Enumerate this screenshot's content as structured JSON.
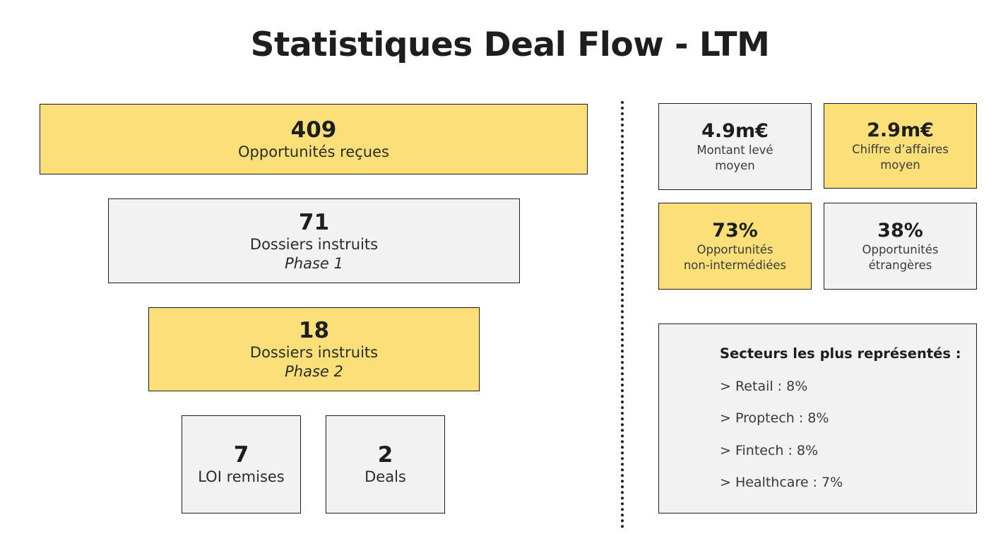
{
  "title": "Statistiques Deal Flow - LTM",
  "funnel": {
    "received": {
      "value": "409",
      "label": "Opportunités reçues"
    },
    "phase1": {
      "value": "71",
      "label": "Dossiers instruits",
      "sub": "Phase 1"
    },
    "phase2": {
      "value": "18",
      "label": "Dossiers instruits",
      "sub": "Phase 2"
    },
    "loi": {
      "value": "7",
      "label": "LOI remises"
    },
    "deals": {
      "value": "2",
      "label": "Deals"
    }
  },
  "kpis": {
    "montant": {
      "value": "4.9m€",
      "label_line1": "Montant levé",
      "label_line2": "moyen"
    },
    "ca": {
      "value": "2.9m€",
      "label_line1": "Chiffre d’affaires",
      "label_line2": "moyen"
    },
    "non_inter": {
      "value": "73%",
      "label_line1": "Opportunités",
      "label_line2": "non-intermédiées"
    },
    "etrangeres": {
      "value": "38%",
      "label_line1": "Opportunités",
      "label_line2": "étrangères"
    }
  },
  "sectors": {
    "title": "Secteurs les plus représentés :",
    "items": [
      "> Retail : 8%",
      "> Proptech : 8%",
      "> Fintech : 8%",
      "> Healthcare : 7%"
    ]
  },
  "colors": {
    "yellow": "#fbe07a",
    "grey": "#f2f2f2",
    "border": "#1e1e1e"
  }
}
